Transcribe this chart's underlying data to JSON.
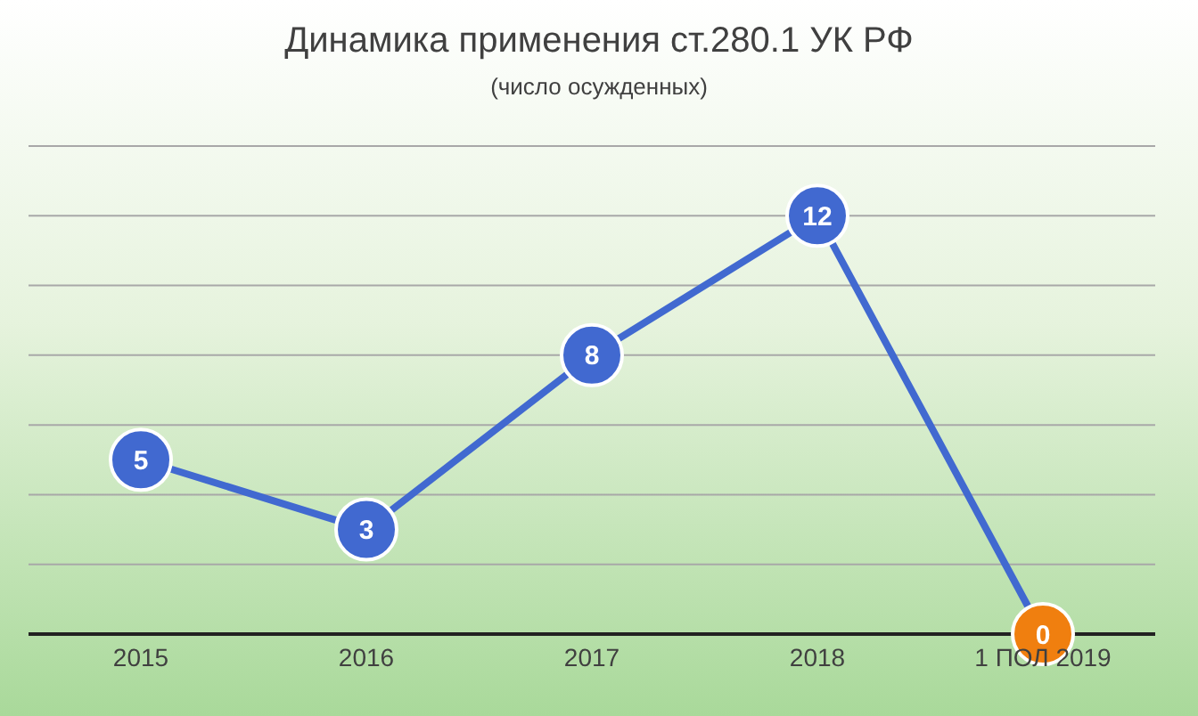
{
  "chart_data": {
    "type": "line",
    "title": "Динамика применения ст.280.1 УК РФ",
    "subtitle": "(число осужденных)",
    "categories": [
      "2015",
      "2016",
      "2017",
      "2018",
      "1 ПОЛ 2019"
    ],
    "series": [
      {
        "color": "#4169d0",
        "colors": [
          "#4169d0",
          "#4169d0",
          "#4169d0",
          "#4169d0",
          "#f07f0f"
        ],
        "values": [
          5,
          3,
          8,
          12,
          0
        ]
      }
    ],
    "ylim": [
      0,
      14
    ],
    "yticks": [
      {
        "value": 0,
        "label": null
      },
      {
        "value": 2,
        "label": null
      },
      {
        "value": 4,
        "label": null
      },
      {
        "value": 6,
        "label": null
      },
      {
        "value": 8,
        "label": null
      },
      {
        "value": 10,
        "label": null
      },
      {
        "value": 12,
        "label": null
      },
      {
        "value": 14,
        "label": null
      }
    ],
    "grid": "y",
    "tick_labels": "x",
    "data_labels": true,
    "marker": "circle",
    "line_style": "solid",
    "legend": false
  }
}
